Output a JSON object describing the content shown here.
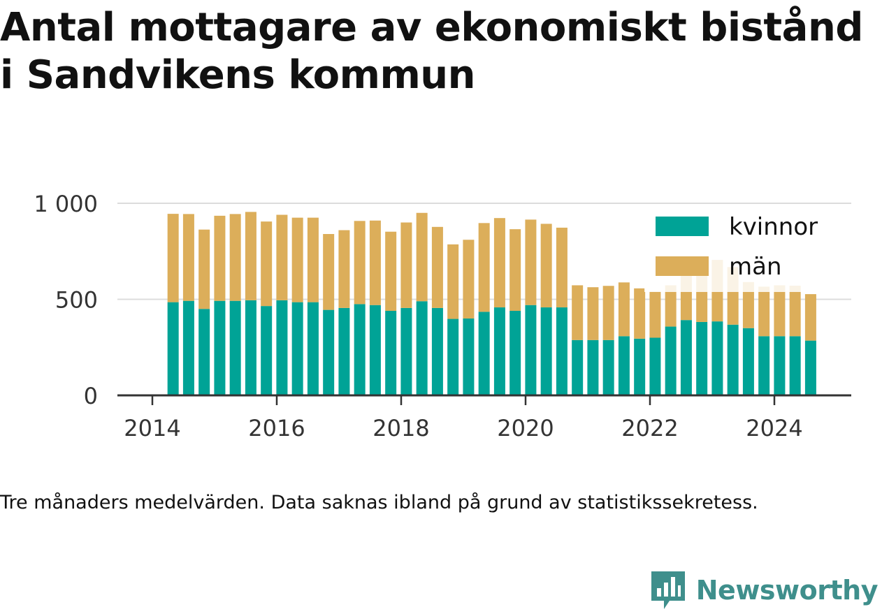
{
  "title": "Antal mottagare av ekonomiskt bistånd i Sandvikens kommun",
  "footnote": "Tre månaders medelvärden. Data saknas ibland på grund av statistikssekretess.",
  "brand": {
    "name": "Newsworthy",
    "color": "#3f8f8c",
    "logo_icon": "bar-chart-speech-bubble-icon"
  },
  "chart_data": {
    "type": "bar",
    "stacked": true,
    "x": [
      "2014-05",
      "2014-08",
      "2014-11",
      "2015-02",
      "2015-05",
      "2015-08",
      "2015-11",
      "2016-02",
      "2016-05",
      "2016-08",
      "2016-11",
      "2017-02",
      "2017-05",
      "2017-08",
      "2017-11",
      "2018-02",
      "2018-05",
      "2018-08",
      "2018-11",
      "2019-02",
      "2019-05",
      "2019-08",
      "2019-11",
      "2020-02",
      "2020-05",
      "2020-08",
      "2020-11",
      "2021-02",
      "2021-05",
      "2021-08",
      "2021-11",
      "2022-02",
      "2022-05",
      "2022-08",
      "2022-11",
      "2023-02",
      "2023-05",
      "2023-08",
      "2023-11",
      "2024-02",
      "2024-05",
      "2024-08"
    ],
    "series": [
      {
        "name": "kvinnor",
        "color": "#00a396",
        "values": [
          485,
          492,
          450,
          492,
          492,
          495,
          465,
          495,
          485,
          485,
          445,
          455,
          475,
          470,
          440,
          455,
          490,
          455,
          398,
          400,
          435,
          458,
          440,
          470,
          458,
          458,
          288,
          288,
          288,
          308,
          295,
          300,
          358,
          392,
          382,
          385,
          368,
          350,
          308,
          308,
          308,
          285
        ]
      },
      {
        "name": "män",
        "color": "#dcae5a",
        "values": [
          460,
          452,
          413,
          443,
          452,
          460,
          440,
          445,
          440,
          440,
          395,
          405,
          433,
          440,
          412,
          445,
          460,
          422,
          388,
          410,
          462,
          465,
          425,
          445,
          435,
          415,
          285,
          275,
          282,
          280,
          262,
          240,
          215,
          255,
          250,
          320,
          300,
          240,
          258,
          265,
          263,
          242
        ]
      }
    ],
    "xticks": [
      "2014",
      "2016",
      "2018",
      "2020",
      "2022",
      "2024"
    ],
    "yticks": [
      "0",
      "500",
      "1 000"
    ],
    "ylim": [
      0,
      1000
    ],
    "legend": {
      "entries": [
        "kvinnor",
        "män"
      ],
      "placement": "top-right"
    },
    "grid": true
  }
}
